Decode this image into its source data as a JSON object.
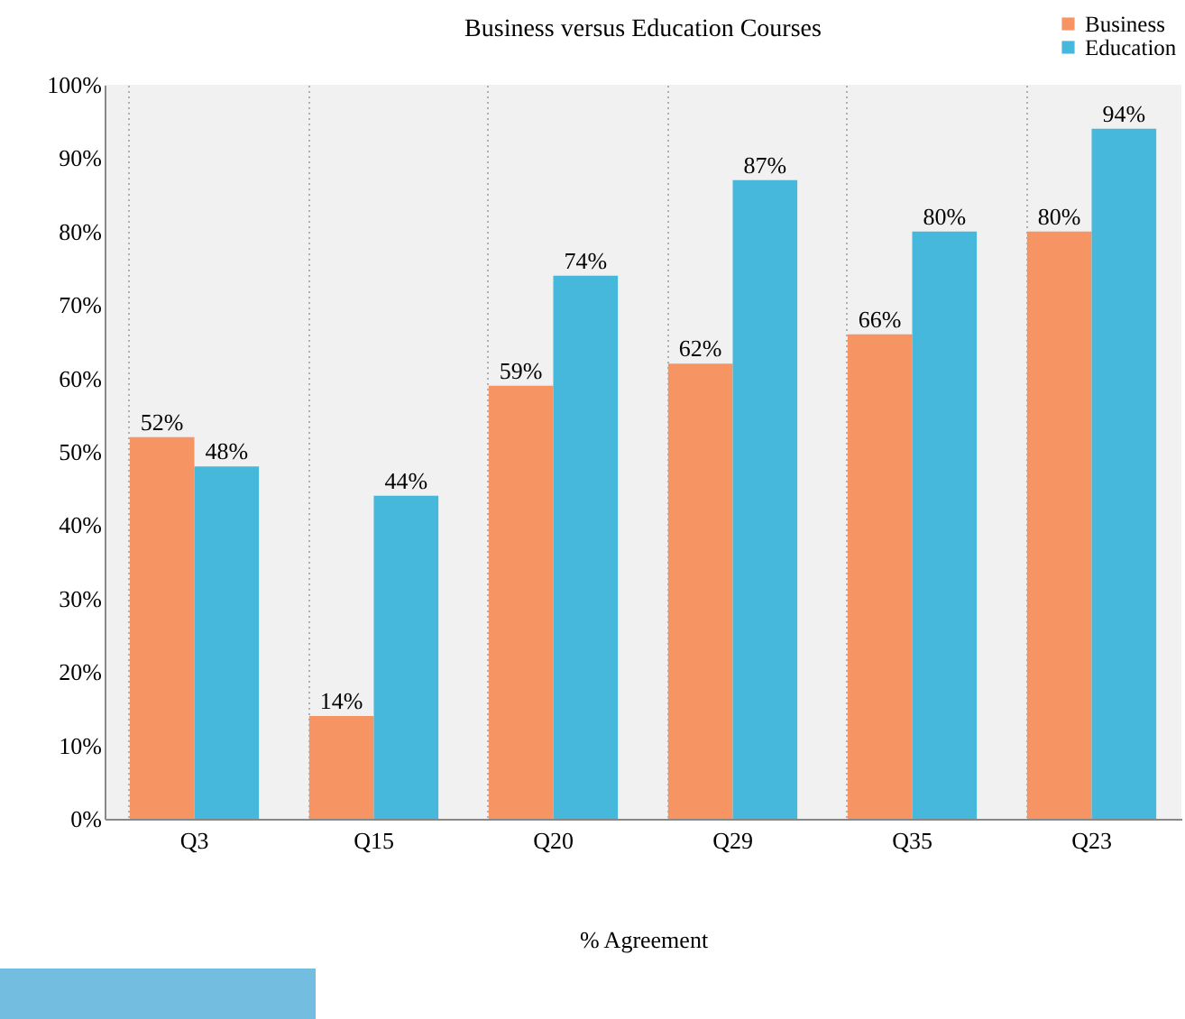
{
  "chart_data": {
    "type": "bar",
    "title": "Business versus Education Courses",
    "xlabel": "% Agreement",
    "categories": [
      "Q3",
      "Q15",
      "Q20",
      "Q29",
      "Q35",
      "Q23"
    ],
    "series": [
      {
        "name": "Business",
        "color": "#f79463",
        "values": [
          52,
          14,
          59,
          62,
          66,
          80
        ],
        "value_labels": [
          "52%",
          "14%",
          "59%",
          "62%",
          "66%",
          "80%"
        ]
      },
      {
        "name": "Education",
        "color": "#45b8dc",
        "values": [
          48,
          44,
          74,
          87,
          80,
          94
        ],
        "value_labels": [
          "48%",
          "44%",
          "74%",
          "87%",
          "80%",
          "94%"
        ]
      }
    ],
    "ylim": [
      0,
      100
    ],
    "yticks": [
      {
        "value": 0,
        "label": "0%"
      },
      {
        "value": 10,
        "label": "10%"
      },
      {
        "value": 20,
        "label": "20%"
      },
      {
        "value": 30,
        "label": "30%"
      },
      {
        "value": 40,
        "label": "40%"
      },
      {
        "value": 50,
        "label": "50%"
      },
      {
        "value": 60,
        "label": "60%"
      },
      {
        "value": 70,
        "label": "70%"
      },
      {
        "value": 80,
        "label": "80%"
      },
      {
        "value": 90,
        "label": "90%"
      },
      {
        "value": 100,
        "label": "100%"
      }
    ],
    "grid": "x",
    "legend": "top right"
  }
}
